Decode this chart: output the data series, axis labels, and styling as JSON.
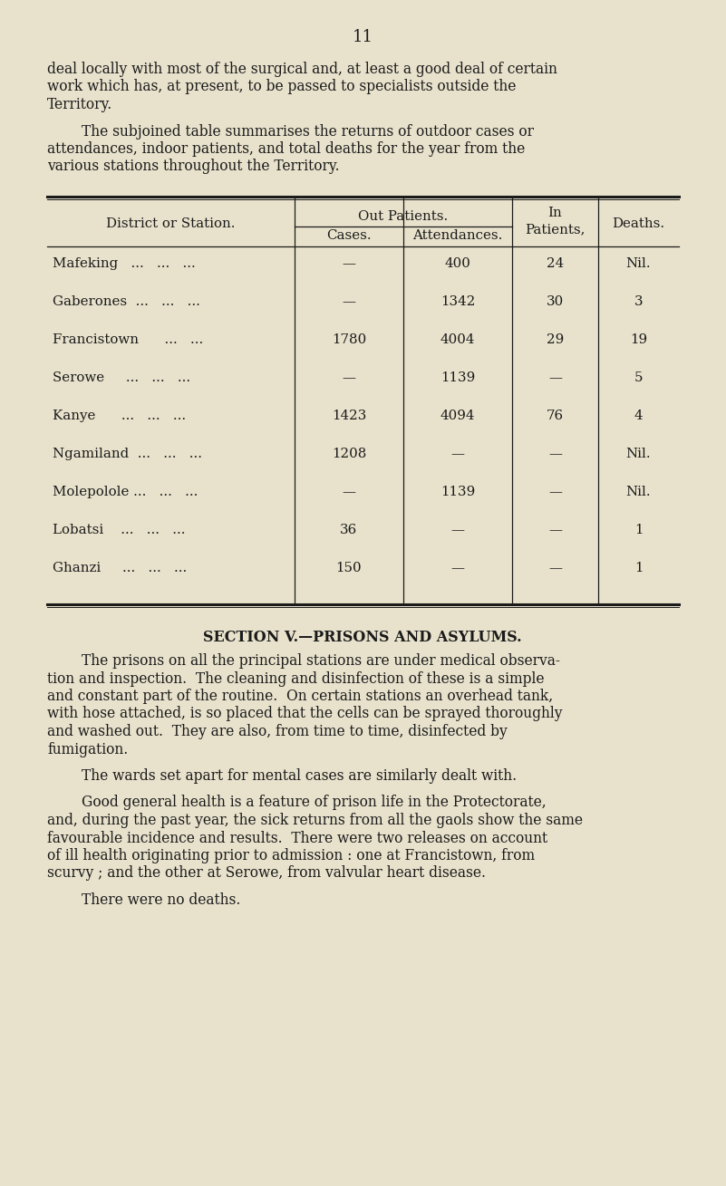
{
  "bg_color": "#e8e2cc",
  "text_color": "#1a1a1a",
  "page_number": "11",
  "para1_line1": "deal locally with most of the surgical and, at least a good deal of certain",
  "para1_line2": "work which has, at present, to be passed to specialists outside the",
  "para1_line3": "Territory.",
  "para2_line1": "The subjoined table summarises the returns of outdoor cases or",
  "para2_line2": "attendances, indoor patients, and total deaths for the year from the",
  "para2_line3": "various stations throughout the Territory.",
  "col_header1": "District or Station.",
  "col_header2": "Out Patients.",
  "col_header3a": "In",
  "col_header3b": "Patients,",
  "col_header4": "Deaths.",
  "col_sub1": "Cases.",
  "col_sub2": "Attendances.",
  "table_rows": [
    [
      "Mafeking",
      "...",
      "...",
      "...",
      "—",
      "400",
      "24",
      "Nil."
    ],
    [
      "Gaberones ...",
      "...",
      "...",
      "",
      "—",
      "1342",
      "30",
      "3"
    ],
    [
      "Francistown",
      "",
      "...",
      "...",
      "1780",
      "4004",
      "29",
      "19"
    ],
    [
      "Serowe",
      "...",
      "...",
      "...",
      "—",
      "1139",
      "—",
      "5"
    ],
    [
      "Kanye",
      "...",
      "...",
      "...",
      "1423",
      "4094",
      "76",
      "4"
    ],
    [
      "Ngamiland ...",
      "...",
      "...",
      "...",
      "1208",
      "—",
      "—",
      "Nil."
    ],
    [
      "Molepolole ...",
      "...",
      "...",
      "...",
      "—",
      "1139",
      "—",
      "Nil."
    ],
    [
      "Lobatsi",
      "...",
      "...",
      "...",
      "36",
      "—",
      "—",
      "1"
    ],
    [
      "Ghanzi",
      "...",
      "...",
      "...",
      "150",
      "—",
      "—",
      "1"
    ]
  ],
  "table_rows_simple": [
    [
      "Mafeking   ...   ...   ...",
      "—",
      "400",
      "24",
      "Nil."
    ],
    [
      "Gaberones  ...   ...   ...",
      "—",
      "1342",
      "30",
      "3"
    ],
    [
      "Francistown      ...   ...",
      "1780",
      "4004",
      "29",
      "19"
    ],
    [
      "Serowe     ...   ...   ...",
      "—",
      "1139",
      "—",
      "5"
    ],
    [
      "Kanye      ...   ...   ...",
      "1423",
      "4094",
      "76",
      "4"
    ],
    [
      "Ngamiland  ...   ...   ...",
      "1208",
      "—",
      "—",
      "Nil."
    ],
    [
      "Molepolole ...   ...   ...",
      "—",
      "1139",
      "—",
      "Nil."
    ],
    [
      "Lobatsi    ...   ...   ...",
      "36",
      "—",
      "—",
      "1"
    ],
    [
      "Ghanzi     ...   ...   ...",
      "150",
      "—",
      "—",
      "1"
    ]
  ],
  "section_title": "SECTION V.—PRISONS AND ASYLUMS.",
  "section_para1_lines": [
    "The prisons on all the principal stations are under medical observa-",
    "tion and inspection.  The cleaning and disinfection of these is a simple",
    "and constant part of the routine.  On certain stations an overhead tank,",
    "with hose attached, is so placed that the cells can be sprayed thoroughly",
    "and washed out.  They are also, from time to time, disinfected by",
    "fumigation."
  ],
  "section_para2_lines": [
    "The wards set apart for mental cases are similarly dealt with."
  ],
  "section_para3_lines": [
    "Good general health is a feature of prison life in the Protectorate,",
    "and, during the past year, the sick returns from all the gaols show the same",
    "favourable incidence and results.  There were two releases on account",
    "of ill health originating prior to admission : one at Francistown, from",
    "scurvy ; and the other at Serowe, from valvular heart disease."
  ],
  "section_para4_lines": [
    "There were no deaths."
  ]
}
